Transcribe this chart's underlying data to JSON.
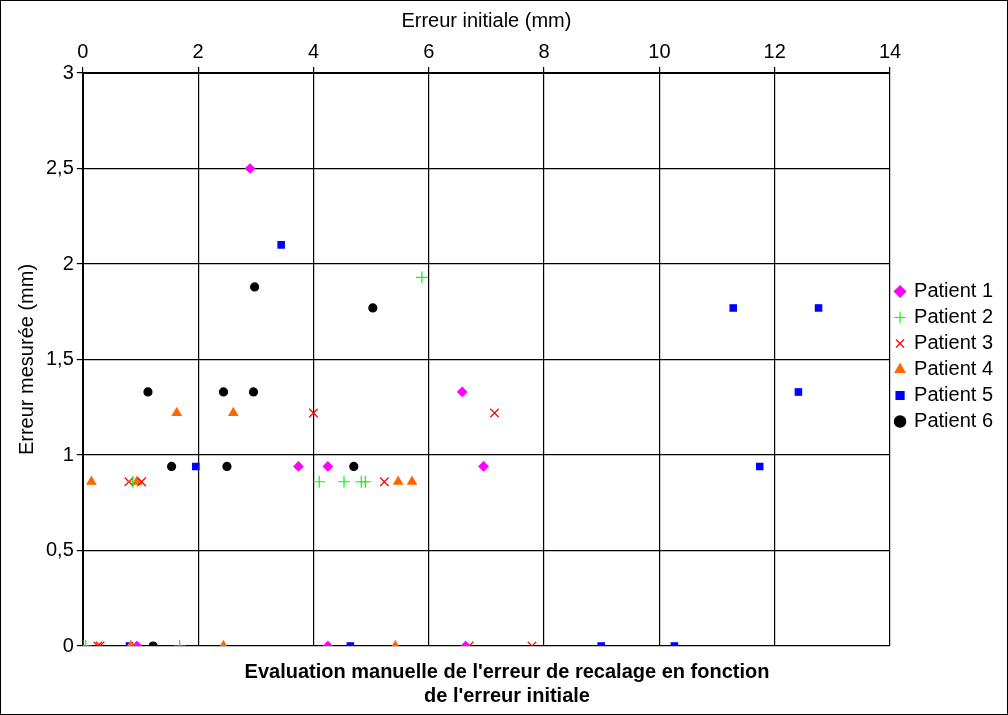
{
  "chart_data": {
    "type": "scatter",
    "title": "Evaluation manuelle de l'erreur de recalage en fonction\nde l'erreur initiale",
    "xlabel": "Erreur initiale (mm)",
    "ylabel": "Erreur mesurée (mm)",
    "xlim": [
      0,
      14
    ],
    "xticks": [
      0,
      2,
      4,
      6,
      8,
      10,
      12,
      14
    ],
    "ylim": [
      0,
      3
    ],
    "yticks": [
      {
        "value": 0,
        "label": "0"
      },
      {
        "value": 0.5,
        "label": "0,5"
      },
      {
        "value": 1,
        "label": "1"
      },
      {
        "value": 1.5,
        "label": "1,5"
      },
      {
        "value": 2,
        "label": "2"
      },
      {
        "value": 2.5,
        "label": "2,5"
      },
      {
        "value": 3,
        "label": "3"
      }
    ],
    "grid": true,
    "legend": "right",
    "series": [
      {
        "name": "Patient 1",
        "color": "#ff00ff",
        "marker": "diamond",
        "x": [
          2.9,
          3.74,
          4.25,
          6.58,
          6.95,
          0.94,
          4.25,
          6.64
        ],
        "values": [
          2.5,
          0.94,
          0.94,
          1.33,
          0.94,
          0,
          0,
          0
        ]
      },
      {
        "name": "Patient 2",
        "color": "#00ff00",
        "marker": "plus",
        "x": [
          0,
          0.05,
          1.68,
          0.87,
          4.1,
          4.53,
          4.83,
          4.9,
          5.88
        ],
        "values": [
          0,
          0,
          0,
          0.86,
          0.86,
          0.86,
          0.86,
          0.86,
          1.93
        ]
      },
      {
        "name": "Patient 3",
        "color": "#ff0000",
        "marker": "cross",
        "x": [
          0.26,
          0.3,
          0.8,
          1.02,
          4.0,
          5.23,
          7.14,
          6.7,
          7.79
        ],
        "values": [
          0,
          0,
          0.86,
          0.86,
          1.22,
          0.86,
          1.22,
          0,
          0
        ]
      },
      {
        "name": "Patient 4",
        "color": "#ff6600",
        "marker": "triangle",
        "x": [
          0.15,
          0.94,
          1.63,
          2.61,
          5.47,
          5.71,
          0.83,
          2.44,
          5.42
        ],
        "values": [
          0.86,
          0.86,
          1.22,
          1.22,
          0.86,
          0.86,
          0,
          0,
          0
        ]
      },
      {
        "name": "Patient 5",
        "color": "#0000ff",
        "marker": "square",
        "x": [
          0.81,
          1.96,
          3.44,
          4.64,
          8.99,
          10.26,
          11.28,
          11.74,
          12.41,
          12.76
        ],
        "values": [
          0,
          0.94,
          2.1,
          0,
          0,
          0,
          1.77,
          0.94,
          1.33,
          1.77
        ]
      },
      {
        "name": "Patient 6",
        "color": "#000000",
        "marker": "circle",
        "x": [
          1.13,
          1.54,
          2.44,
          2.5,
          2.98,
          2.96,
          5.03,
          4.7,
          1.22
        ],
        "values": [
          1.33,
          0.94,
          1.33,
          0.94,
          1.88,
          1.33,
          1.77,
          0.94,
          0
        ]
      }
    ]
  }
}
